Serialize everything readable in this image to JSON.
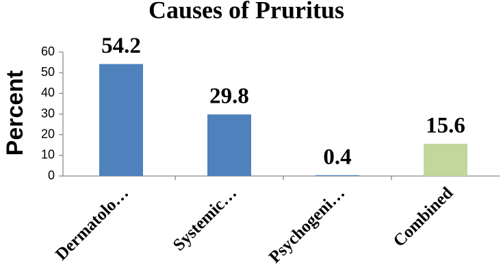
{
  "chart_data": {
    "type": "bar",
    "title": "Causes of  Pruritus",
    "y_label": "Percent",
    "categories": [
      "Dermatolo…",
      "Systemic…",
      "Psychogeni…",
      "Combined"
    ],
    "values": [
      54.2,
      29.8,
      0.4,
      15.6
    ],
    "colors": [
      "#4f81bd",
      "#4f81bd",
      "#4f81bd",
      "#c3d69b"
    ],
    "ylim": [
      0,
      60
    ],
    "yticks": [
      0,
      10,
      20,
      30,
      40,
      50,
      60
    ],
    "grid": false
  }
}
